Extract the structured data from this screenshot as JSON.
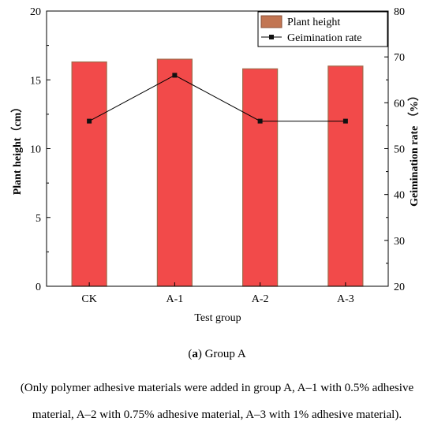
{
  "chart_data": {
    "type": "bar+line",
    "categories": [
      "CK",
      "A-1",
      "A-2",
      "A-3"
    ],
    "xlabel": "Test group",
    "ylabel_left": "Plant height（cm）",
    "ylabel_right": "Geimination rate （%）",
    "ylim_left": [
      0,
      20
    ],
    "yticks_left": [
      "0",
      "5",
      "10",
      "15",
      "20"
    ],
    "ylim_right": [
      20,
      80
    ],
    "yticks_right": [
      "20",
      "30",
      "40",
      "50",
      "60",
      "70",
      "80"
    ],
    "grid": false,
    "legend_position": "top-right",
    "series": [
      {
        "name": "Plant height",
        "type": "bar",
        "axis": "left",
        "values": [
          16.3,
          16.5,
          15.8,
          16.0
        ],
        "color": "#f24a4a",
        "edge": "#a06a4a"
      },
      {
        "name": "Geimination rate",
        "type": "line",
        "axis": "right",
        "values": [
          56,
          66,
          56,
          56
        ],
        "color": "#000000"
      }
    ]
  },
  "caption": {
    "label_bold": "a",
    "label_rest": ") Group A",
    "label_open": "(",
    "note_line1": "(Only polymer adhesive materials were added in group A, A–1 with 0.5% adhesive",
    "note_line2": "material, A–2 with 0.75% adhesive material, A–3 with 1% adhesive material)."
  }
}
